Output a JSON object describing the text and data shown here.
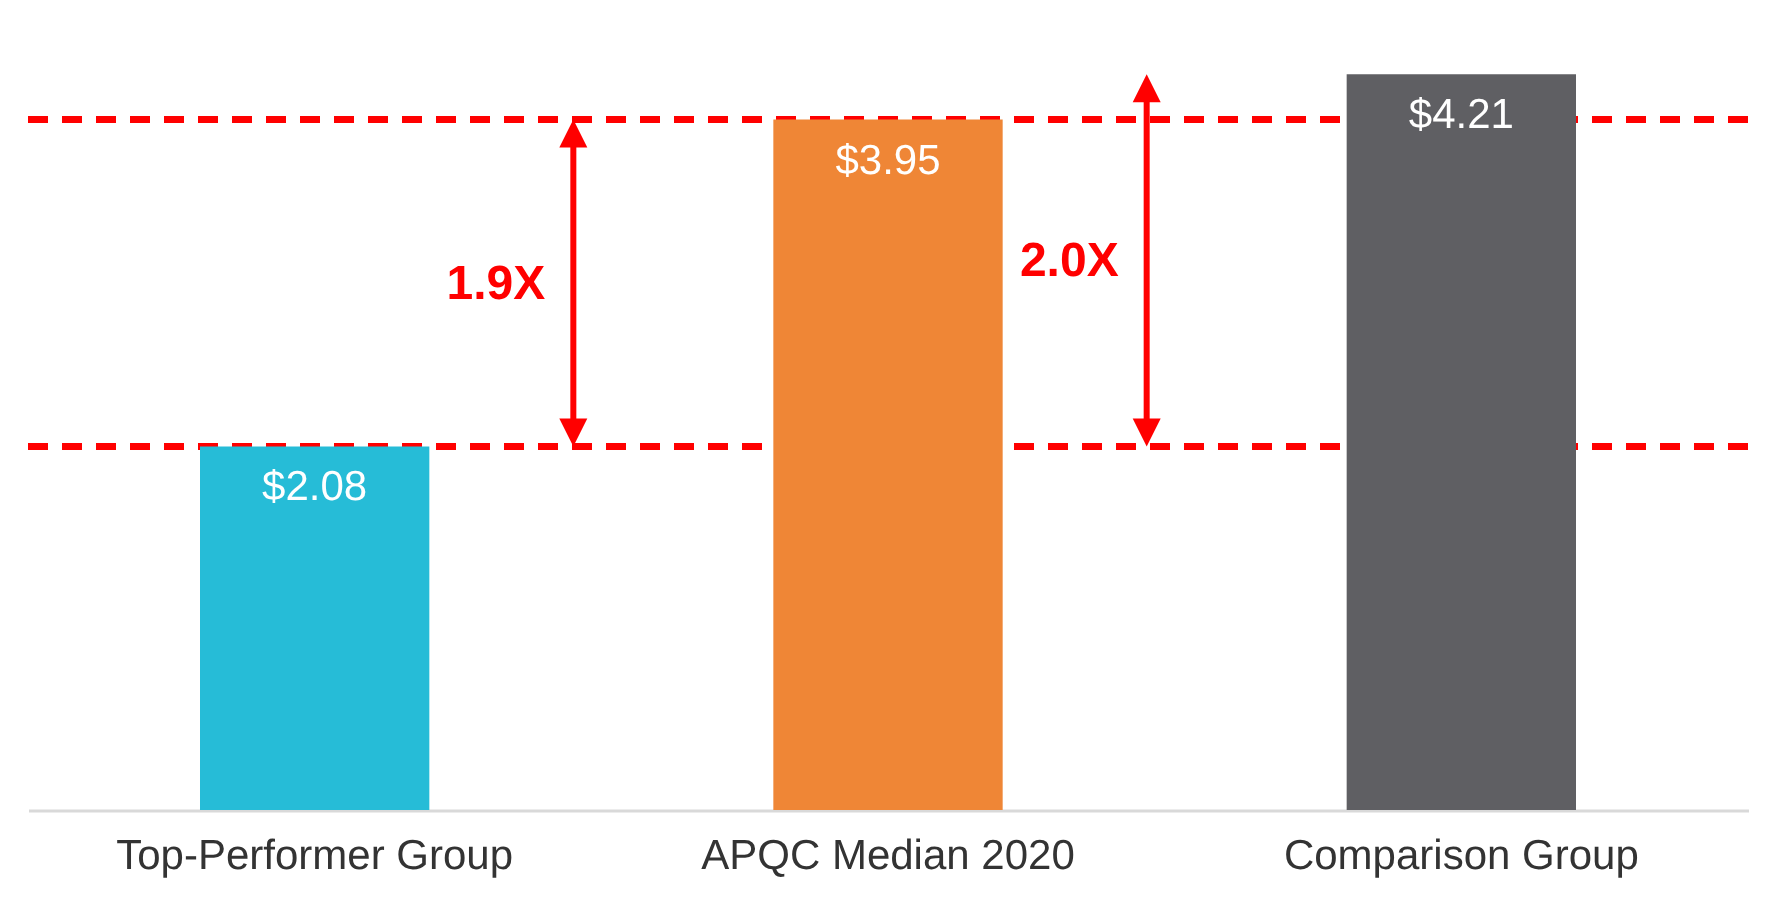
{
  "chart_data": {
    "type": "bar",
    "categories": [
      "Top-Performer Group",
      "APQC Median 2020",
      "Comparison Group"
    ],
    "values": [
      2.08,
      3.95,
      4.21
    ],
    "colors": [
      "#26bcd7",
      "#ef8636",
      "#5f5f63"
    ],
    "value_labels": [
      "$2.08",
      "$3.95",
      "$4.21"
    ],
    "ref_lines": [
      {
        "axis": "y",
        "value": 3.95,
        "color": "#ff0000",
        "line_style": "dashed"
      },
      {
        "axis": "y",
        "value": 2.08,
        "color": "#ff0000",
        "line_style": "dashed"
      }
    ],
    "annotations": [
      "1.9X",
      "2.0X"
    ]
  }
}
